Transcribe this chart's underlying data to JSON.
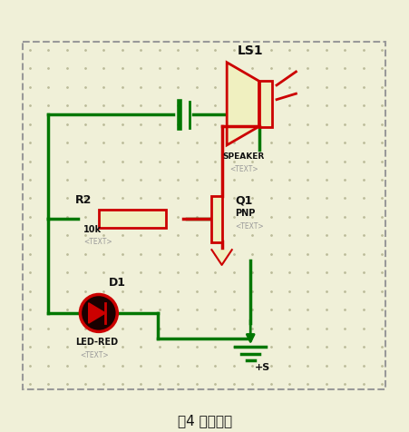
{
  "title": "图4 报警电路",
  "bg_color": "#f0f0d8",
  "dot_color": "#bbbb99",
  "border_color": "#999999",
  "green": "#007700",
  "red": "#cc0000",
  "beige": "#f0f0c0",
  "black": "#111111",
  "gray_text": "#999999",
  "components": {
    "R2": {
      "label": "R2",
      "sublabel": "10k",
      "subtext": "<TEXT>"
    },
    "D1": {
      "label": "D1",
      "sublabel": "LED-RED",
      "subtext": "<TEXT>"
    },
    "Q1": {
      "label": "Q1",
      "sublabel": "PNP",
      "subtext": "<TEXT>"
    },
    "LS1": {
      "label": "LS1",
      "sublabel": "SPEAKER",
      "subtext": "<TEXT>"
    }
  },
  "bottom_label": "+S"
}
